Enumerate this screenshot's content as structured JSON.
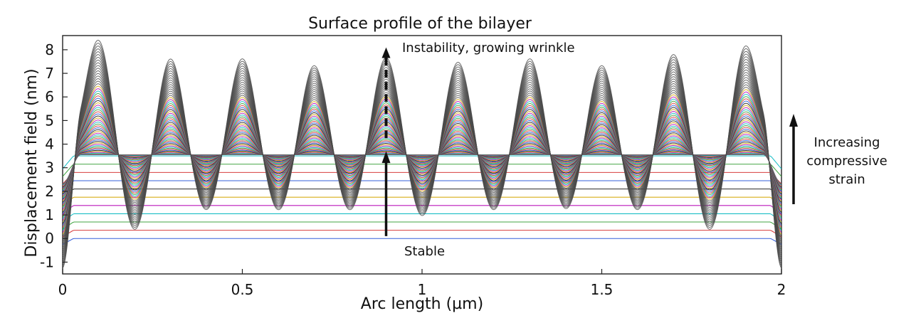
{
  "chart_data": {
    "type": "line",
    "title": "Surface profile of the bilayer",
    "xlabel": "Arc length (µm)",
    "ylabel": "Displacement field (nm)",
    "xlim": [
      0,
      2
    ],
    "ylim": [
      -1.5,
      8.6
    ],
    "x_ticks": [
      {
        "value": 0,
        "label": "0"
      },
      {
        "value": 0.5,
        "label": "0.5"
      },
      {
        "value": 1,
        "label": "1"
      },
      {
        "value": 1.5,
        "label": "1.5"
      },
      {
        "value": 2,
        "label": "2"
      }
    ],
    "y_ticks": [
      {
        "value": -1,
        "label": "-1"
      },
      {
        "value": 0,
        "label": "0"
      },
      {
        "value": 1,
        "label": "1"
      },
      {
        "value": 2,
        "label": "2"
      },
      {
        "value": 3,
        "label": "3"
      },
      {
        "value": 4,
        "label": "4"
      },
      {
        "value": 5,
        "label": "5"
      },
      {
        "value": 6,
        "label": "6"
      },
      {
        "value": 7,
        "label": "7"
      },
      {
        "value": 8,
        "label": "8"
      }
    ],
    "grid": false,
    "series_colors": [
      "#1f4fd6",
      "#d42a2a",
      "#2f9a2f",
      "#00b7bf",
      "#b300b3",
      "#d3a400",
      "#111111"
    ],
    "stable_levels": [
      0,
      0.35,
      0.7,
      1.05,
      1.4,
      1.75,
      2.1,
      2.45,
      2.8,
      3.15,
      3.5
    ],
    "unstable_profiles": {
      "count": 58,
      "base": 3.55,
      "final_peaks": [
        8.35,
        7.85,
        7.6,
        7.55,
        7.65,
        7.7,
        7.6,
        7.55,
        7.8,
        8.35
      ],
      "final_valleys": [
        0.2,
        1.05,
        1.05,
        1.05,
        0.8,
        1.05,
        1.1,
        1.05,
        0.2
      ],
      "peak_x": [
        0.1,
        0.3,
        0.5,
        0.7,
        0.9,
        1.1,
        1.3,
        1.5,
        1.7,
        1.9
      ],
      "valley_x": [
        0.2,
        0.4,
        0.6,
        0.8,
        1.0,
        1.2,
        1.4,
        1.6,
        1.8
      ],
      "edge_min": -1.35
    },
    "annotations": {
      "top": "Instability, growing wrinkle",
      "bottom": "Stable",
      "right_line1": "Increasing",
      "right_line2": "compressive",
      "right_line3": "strain"
    }
  }
}
